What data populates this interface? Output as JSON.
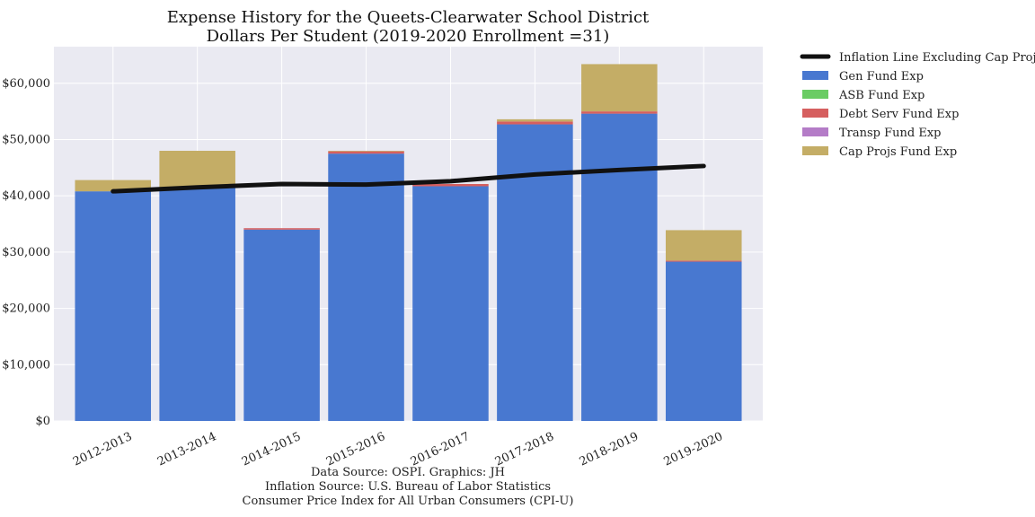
{
  "chart_data": {
    "type": "bar",
    "stacked": true,
    "title": "Expense History for the Queets-Clearwater School District",
    "subtitle": "Dollars Per Student (2019-2020 Enrollment =31)",
    "xlabel": "",
    "ylabel": "",
    "ylim": [
      0,
      66500
    ],
    "yticks": [
      0,
      10000,
      20000,
      30000,
      40000,
      50000,
      60000
    ],
    "ytick_labels": [
      "$0",
      "$10,000",
      "$20,000",
      "$30,000",
      "$40,000",
      "$50,000",
      "$60,000"
    ],
    "grid": true,
    "legend_position": "outside-top-right",
    "categories": [
      "2012-2013",
      "2013-2014",
      "2014-2015",
      "2015-2016",
      "2016-2017",
      "2017-2018",
      "2018-2019",
      "2019-2020"
    ],
    "series": [
      {
        "name": "Gen Fund Exp",
        "color": "#4878d0",
        "values": [
          40800,
          41500,
          34000,
          47500,
          41700,
          52700,
          54600,
          28300
        ]
      },
      {
        "name": "ASB Fund Exp",
        "color": "#6acc64",
        "values": [
          0,
          0,
          0,
          0,
          0,
          0,
          0,
          0
        ]
      },
      {
        "name": "Debt Serv Fund Exp",
        "color": "#d65f5f",
        "values": [
          0,
          0,
          250,
          400,
          400,
          500,
          400,
          200
        ]
      },
      {
        "name": "Transp Fund Exp",
        "color": "#b47cc7",
        "values": [
          0,
          0,
          0,
          0,
          0,
          0,
          0,
          0
        ]
      },
      {
        "name": "Cap Projs Fund Exp",
        "color": "#c4ad66",
        "values": [
          2000,
          6500,
          0,
          100,
          0,
          400,
          8400,
          5400
        ]
      }
    ],
    "line": {
      "name": "Inflation Line Excluding Cap Projs",
      "color": "#111111",
      "values": [
        40800,
        41500,
        42100,
        42000,
        42600,
        43800,
        44600,
        45300
      ]
    },
    "source_lines": [
      "Data Source: OSPI. Graphics: JH",
      "Inflation Source: U.S. Bureau of Labor Statistics",
      "Consumer Price Index for All Urban Consumers (CPI-U)"
    ]
  }
}
